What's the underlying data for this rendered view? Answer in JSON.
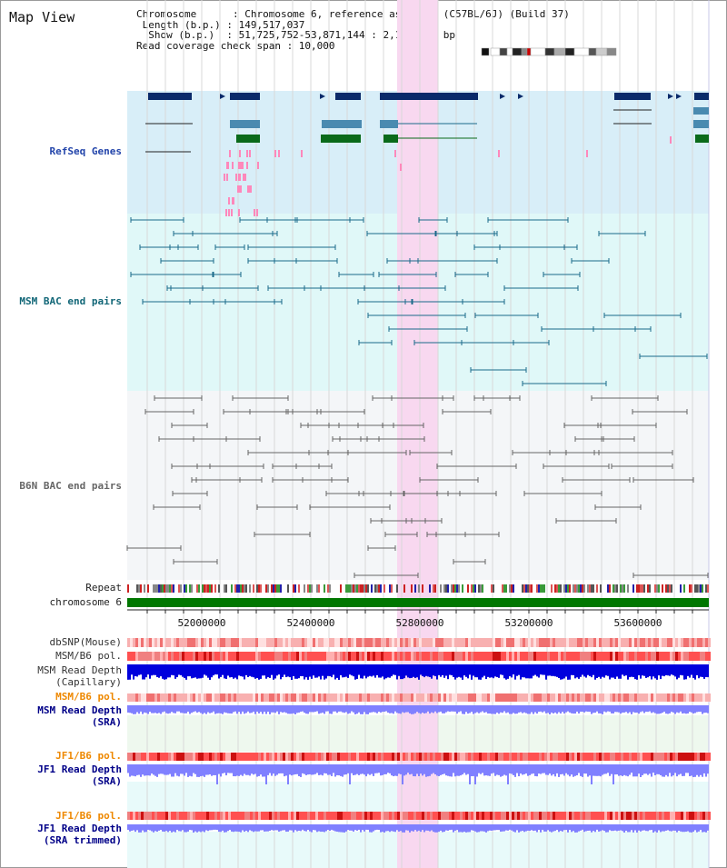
{
  "page": {
    "title": "Map View"
  },
  "info": {
    "lines": [
      "Chromosome      : Chromosome 6, reference assembly (C57BL/6J) (Build 37)",
      " Length (b.p.) : 149,517,037",
      "  Show (b.p.)  : 51,725,752-53,871,144 : 2,145,393 bp",
      "Read coverage check span : 10,000"
    ]
  },
  "tracks": {
    "refseq": {
      "label": "RefSeq Genes",
      "color": "#1a3a8a"
    },
    "msm_bac": {
      "label": "MSM BAC end pairs",
      "color": "#1a6a8a"
    },
    "b6n_bac": {
      "label": "B6N BAC end pairs",
      "color": "#666666"
    },
    "repeat": {
      "label": "Repeat"
    },
    "chromosome": {
      "label": "chromosome 6",
      "color": "#007700"
    },
    "dbsnp": {
      "label": "dbSNP(Mouse)"
    },
    "msm_pol": {
      "label": "MSM/B6 pol."
    },
    "msm_depth_cap": {
      "label": "MSM Read Depth",
      "sublabel": "(Capillary)"
    },
    "msm_pol2": {
      "label": "MSM/B6 pol."
    },
    "msm_depth_sra": {
      "label": "MSM Read Depth",
      "sublabel": "(SRA)"
    },
    "jf1_pol": {
      "label": "JF1/B6 pol."
    },
    "jf1_depth_sra": {
      "label": "JF1 Read Depth",
      "sublabel": "(SRA)"
    },
    "jf1_pol2": {
      "label": "JF1/B6 pol."
    },
    "jf1_depth_trim": {
      "label": "JF1 Read Depth",
      "sublabel": "(SRA trimmed)"
    }
  },
  "axis": {
    "ticks": [
      "52000000",
      "52400000",
      "52800000",
      "53200000",
      "53600000"
    ]
  },
  "colors": {
    "highlight": "#f8d8f0",
    "refseq_bg": "#d8eef8",
    "msm_bg": "#e0f8f8",
    "b6n_bg": "#f4f6f8",
    "depth_blue": "#0000dd",
    "depth_light": "#8080ff",
    "pol_red": "#ee2020",
    "label_orange": "#ee8800",
    "label_navy": "#000088"
  }
}
